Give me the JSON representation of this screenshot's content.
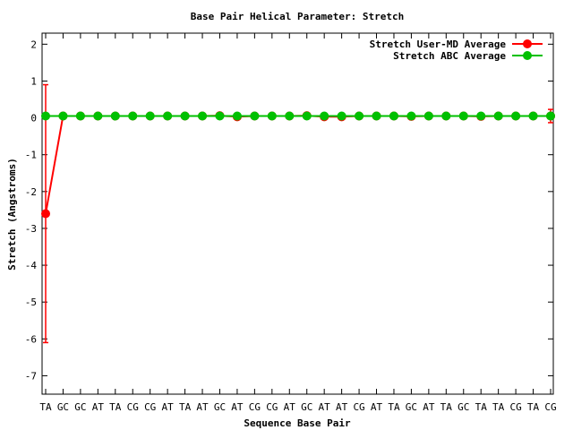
{
  "chart_data": {
    "type": "line",
    "title": "Base Pair Helical Parameter: Stretch",
    "xlabel": "Sequence Base Pair",
    "ylabel": "Stretch (Angstroms)",
    "ylim": [
      -7.5,
      2.3
    ],
    "yticks": [
      2,
      1,
      0,
      -1,
      -2,
      -3,
      -4,
      -5,
      -6,
      -7
    ],
    "grid": false,
    "legend_position": "top-right",
    "categories": [
      "TA",
      "GC",
      "GC",
      "AT",
      "TA",
      "CG",
      "CG",
      "AT",
      "TA",
      "AT",
      "GC",
      "AT",
      "CG",
      "CG",
      "AT",
      "GC",
      "AT",
      "AT",
      "CG",
      "AT",
      "TA",
      "GC",
      "AT",
      "TA",
      "GC",
      "TA",
      "TA",
      "CG",
      "TA",
      "CG"
    ],
    "series": [
      {
        "name": "Stretch User-MD Average",
        "color": "#ff0000",
        "values": [
          -2.6,
          0.05,
          0.05,
          0.05,
          0.05,
          0.05,
          0.05,
          0.05,
          0.05,
          0.05,
          0.06,
          0.03,
          0.05,
          0.05,
          0.05,
          0.06,
          0.03,
          0.03,
          0.05,
          0.05,
          0.05,
          0.04,
          0.05,
          0.05,
          0.05,
          0.04,
          0.05,
          0.05,
          0.05,
          0.05
        ],
        "error": [
          3.5,
          0,
          0,
          0,
          0,
          0,
          0,
          0,
          0,
          0,
          0,
          0,
          0,
          0,
          0,
          0,
          0,
          0,
          0,
          0,
          0,
          0,
          0,
          0,
          0,
          0,
          0,
          0,
          0,
          0.18
        ]
      },
      {
        "name": "Stretch ABC Average",
        "color": "#00c000",
        "values": [
          0.05,
          0.05,
          0.05,
          0.05,
          0.05,
          0.05,
          0.05,
          0.05,
          0.05,
          0.05,
          0.05,
          0.05,
          0.05,
          0.05,
          0.05,
          0.05,
          0.05,
          0.05,
          0.05,
          0.05,
          0.05,
          0.05,
          0.05,
          0.05,
          0.05,
          0.05,
          0.05,
          0.05,
          0.05,
          0.05
        ]
      }
    ]
  }
}
